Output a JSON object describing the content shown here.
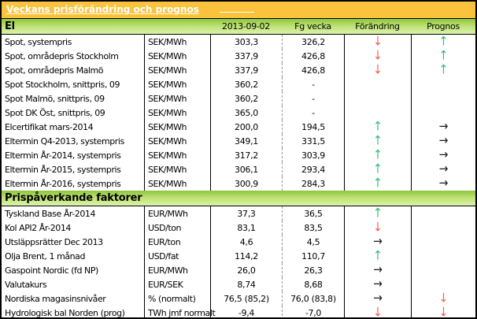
{
  "title": "Veckans prisförändring och prognos",
  "columns": {
    "current": "2013-09-02",
    "previous": "Fg vecka",
    "change": "Förändring",
    "forecast": "Prognos"
  },
  "sections": [
    {
      "label": "El",
      "rows": [
        {
          "name": "Spot, systempris",
          "unit": "SEK/MWh",
          "current": "303,3",
          "previous": "326,2",
          "change": "down",
          "forecast": "up"
        },
        {
          "name": "Spot, områdepris Stockholm",
          "unit": "SEK/MWh",
          "current": "337,9",
          "previous": "426,8",
          "change": "down",
          "forecast": "up"
        },
        {
          "name": "Spot, områdepris Malmö",
          "unit": "SEK/MWh",
          "current": "337,9",
          "previous": "426,8",
          "change": "down",
          "forecast": "up"
        },
        {
          "name": "Spot Stockholm, snittpris, 09",
          "unit": "SEK/MWh",
          "current": "360,2",
          "previous": "-",
          "change": "",
          "forecast": ""
        },
        {
          "name": "Spot Malmö, snittpris, 09",
          "unit": "SEK/MWh",
          "current": "360,2",
          "previous": "-",
          "change": "",
          "forecast": ""
        },
        {
          "name": "Spot DK Öst, snittpris, 09",
          "unit": "SEK/MWh",
          "current": "365,0",
          "previous": "-",
          "change": "",
          "forecast": ""
        },
        {
          "name": "Elcertifikat mars-2014",
          "unit": "SEK/MWh",
          "current": "200,0",
          "previous": "194,5",
          "change": "up",
          "forecast": "flat"
        },
        {
          "name": "Eltermin Q4-2013, systempris",
          "unit": "SEK/MWh",
          "current": "349,1",
          "previous": "331,5",
          "change": "up",
          "forecast": "flat"
        },
        {
          "name": "Eltermin År-2014, systempris",
          "unit": "SEK/MWh",
          "current": "317,2",
          "previous": "303,9",
          "change": "up",
          "forecast": "flat"
        },
        {
          "name": "Eltermin År-2015, systempris",
          "unit": "SEK/MWh",
          "current": "306,1",
          "previous": "293,4",
          "change": "up",
          "forecast": "flat"
        },
        {
          "name": "Eltermin År-2016, systempris",
          "unit": "SEK/MWh",
          "current": "300,9",
          "previous": "284,3",
          "change": "up",
          "forecast": "flat"
        }
      ]
    },
    {
      "label": "Prispåverkande faktorer",
      "rows": [
        {
          "name": "Tyskland Base År-2014",
          "unit": "EUR/MWh",
          "current": "37,3",
          "previous": "36,5",
          "change": "up",
          "forecast": ""
        },
        {
          "name": "Kol API2 År-2014",
          "unit": "USD/ton",
          "current": "83,1",
          "previous": "83,5",
          "change": "down",
          "forecast": ""
        },
        {
          "name": "Utsläppsrätter Dec 2013",
          "unit": "EUR/ton",
          "current": "4,6",
          "previous": "4,5",
          "change": "flat",
          "forecast": ""
        },
        {
          "name": "Olja Brent, 1 månad",
          "unit": "USD/fat",
          "current": "114,2",
          "previous": "110,7",
          "change": "up",
          "forecast": ""
        },
        {
          "name": "Gaspoint Nordic (fd NP)",
          "unit": "EUR/MWh",
          "current": "26,0",
          "previous": "26,3",
          "change": "flat",
          "forecast": ""
        },
        {
          "name": "Valutakurs",
          "unit": "EUR/SEK",
          "current": "8,74",
          "previous": "8,68",
          "change": "flat",
          "forecast": ""
        },
        {
          "name": "Nordiska magasinsnivåer",
          "unit": "%  (normalt)",
          "current": "76,5 (85,2)",
          "previous": "76,0 (83,8)",
          "change": "flat",
          "forecast": "down"
        },
        {
          "name": "Hydrologisk bal Norden (prog)",
          "unit": "TWh jmf normalt",
          "current": "-9,4",
          "previous": "-7,0",
          "change": "down",
          "forecast": "down"
        }
      ]
    }
  ],
  "icons": {
    "up": "↑",
    "down": "↓",
    "flat": "→"
  },
  "colors": {
    "title_bg": "#FBC33D",
    "title_text": "#FFFFFF",
    "arrow_up": "#2EBE71",
    "arrow_down": "#FB5A52",
    "arrow_flat": "#1A1A1A",
    "green_top": "#8CC63F",
    "green_bottom": "#DCF2AC"
  }
}
